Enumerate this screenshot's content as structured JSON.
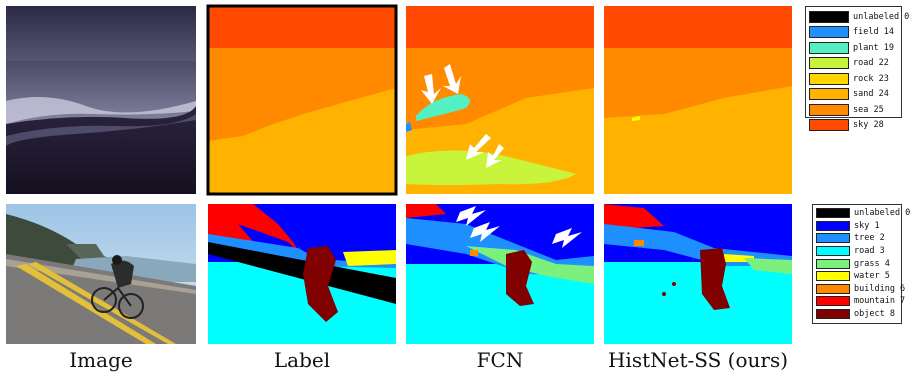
{
  "columns": [
    "Image",
    "Label",
    "FCN",
    "HistNet-SS (ours)"
  ],
  "legends": [
    {
      "items": [
        {
          "label": "unlabeled 0",
          "color": "#000000"
        },
        {
          "label": "field 14",
          "color": "#1e90ff"
        },
        {
          "label": "plant 19",
          "color": "#52f0c2"
        },
        {
          "label": "road 22",
          "color": "#c8f53c"
        },
        {
          "label": "rock 23",
          "color": "#ffd400"
        },
        {
          "label": "sand 24",
          "color": "#ffb300"
        },
        {
          "label": "sea 25",
          "color": "#ff8a00"
        },
        {
          "label": "sky 28",
          "color": "#ff4a00"
        }
      ]
    },
    {
      "items": [
        {
          "label": "unlabeled 0",
          "color": "#000000"
        },
        {
          "label": "sky 1",
          "color": "#0000ff"
        },
        {
          "label": "tree 2",
          "color": "#1e8fff"
        },
        {
          "label": "road 3",
          "color": "#00ffff"
        },
        {
          "label": "grass 4",
          "color": "#7cf07c"
        },
        {
          "label": "water 5",
          "color": "#ffff00"
        },
        {
          "label": "building 6",
          "color": "#ff8800"
        },
        {
          "label": "mountain 7",
          "color": "#ff0000"
        },
        {
          "label": "object 8",
          "color": "#800000"
        }
      ]
    }
  ]
}
